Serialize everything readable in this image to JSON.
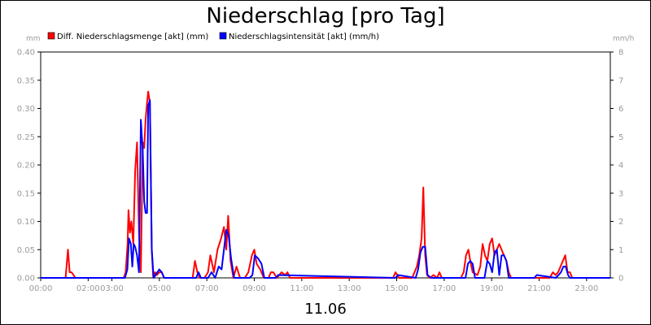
{
  "chart_data": {
    "type": "line",
    "title": "Niederschlag [pro Tag]",
    "xlabel": "11.06",
    "y_left_unit": "mm",
    "y_right_unit": "mm/h",
    "y_left_range": [
      0,
      0.4
    ],
    "y_right_range": [
      0,
      8
    ],
    "y_left_ticks": [
      "0.00",
      "0.05",
      "0.10",
      "0.15",
      "0.20",
      "0.25",
      "0.30",
      "0.35",
      "0.40"
    ],
    "y_right_ticks": [
      "0",
      "1",
      "2",
      "3",
      "4",
      "5",
      "6",
      "7",
      "8"
    ],
    "x_range_hours": [
      0,
      24
    ],
    "x_tick_hours": [
      0,
      2,
      3,
      5,
      7,
      9,
      11,
      13,
      15,
      17,
      19,
      21,
      23
    ],
    "x_tick_labels": [
      "00:00",
      "02:00",
      "03:00",
      "05:00",
      "07:00",
      "09:00",
      "11:00",
      "13:00",
      "15:00",
      "17:00",
      "19:00",
      "21:00",
      "23:00"
    ],
    "grid": false,
    "legend_placement": "top-left",
    "series": [
      {
        "name": "Diff. Niederschlagsmenge [akt] (mm)",
        "color": "#ff0000",
        "axis": "left",
        "x": [
          0,
          1.05,
          1.15,
          1.22,
          1.3,
          1.38,
          1.46,
          1.55,
          3.5,
          3.58,
          3.66,
          3.7,
          3.76,
          3.82,
          3.9,
          3.98,
          4.06,
          4.14,
          4.22,
          4.3,
          4.36,
          4.42,
          4.48,
          4.53,
          4.6,
          4.68,
          4.74,
          4.82,
          4.9,
          5.0,
          5.1,
          5.2,
          6.4,
          6.5,
          6.6,
          6.7,
          6.9,
          7.05,
          7.15,
          7.3,
          7.45,
          7.6,
          7.72,
          7.82,
          7.9,
          8.0,
          8.12,
          8.25,
          8.4,
          8.6,
          8.75,
          8.9,
          9.0,
          9.1,
          9.25,
          9.4,
          9.6,
          9.7,
          9.8,
          9.95,
          10.15,
          10.3,
          10.4,
          10.5,
          14.85,
          14.95,
          15.1,
          15.65,
          15.85,
          15.95,
          16.05,
          16.12,
          16.2,
          16.28,
          16.4,
          16.55,
          16.7,
          16.8,
          16.9,
          17.7,
          17.82,
          17.92,
          18.02,
          18.1,
          18.2,
          18.4,
          18.52,
          18.62,
          18.72,
          18.82,
          18.92,
          19.02,
          19.12,
          19.22,
          19.32,
          19.42,
          19.52,
          19.62,
          19.72,
          19.82,
          20.9,
          21.45,
          21.58,
          21.7,
          21.8,
          21.9,
          22.0,
          22.1,
          22.2,
          22.3,
          22.4,
          24.0
        ],
        "values": [
          0,
          0,
          0.05,
          0.01,
          0.01,
          0.005,
          0,
          0,
          0,
          0.01,
          0.06,
          0.12,
          0.08,
          0.1,
          0.06,
          0.19,
          0.24,
          0.08,
          0.01,
          0.24,
          0.23,
          0.28,
          0.31,
          0.33,
          0.31,
          0.05,
          0,
          0.01,
          0.005,
          0.01,
          0.01,
          0,
          0,
          0.03,
          0.01,
          0,
          0,
          0.01,
          0.04,
          0.01,
          0.05,
          0.07,
          0.09,
          0.05,
          0.11,
          0.03,
          0,
          0.02,
          0,
          0,
          0.01,
          0.04,
          0.05,
          0.025,
          0.015,
          0,
          0,
          0.01,
          0.01,
          0,
          0.01,
          0.005,
          0.01,
          0,
          0,
          0.01,
          0,
          0,
          0.02,
          0.04,
          0.07,
          0.16,
          0.04,
          0.005,
          0,
          0.005,
          0,
          0.01,
          0,
          0,
          0.01,
          0.04,
          0.05,
          0.03,
          0.01,
          0.005,
          0.02,
          0.06,
          0.04,
          0.03,
          0.06,
          0.07,
          0.04,
          0.05,
          0.06,
          0.05,
          0.04,
          0.03,
          0.01,
          0,
          0,
          0,
          0.01,
          0.005,
          0.01,
          0.02,
          0.03,
          0.04,
          0.01,
          0.01,
          0,
          0
        ]
      },
      {
        "name": "Niederschlagsintensität [akt] (mm/h)",
        "color": "#0000ff",
        "axis": "right",
        "x": [
          0,
          3.55,
          3.65,
          3.72,
          3.8,
          3.86,
          3.92,
          3.98,
          4.06,
          4.14,
          4.22,
          4.3,
          4.36,
          4.42,
          4.48,
          4.53,
          4.6,
          4.68,
          4.76,
          4.84,
          5.0,
          5.1,
          5.2,
          6.55,
          6.65,
          6.75,
          7.05,
          7.2,
          7.35,
          7.5,
          7.62,
          7.72,
          7.82,
          7.92,
          8.02,
          8.15,
          8.8,
          8.92,
          9.02,
          9.15,
          9.3,
          9.42,
          9.55,
          9.9,
          10.0,
          14.95,
          15.05,
          15.8,
          15.9,
          16.0,
          16.1,
          16.2,
          16.3,
          16.45,
          17.9,
          18.0,
          18.1,
          18.2,
          18.3,
          18.7,
          18.82,
          18.92,
          19.02,
          19.12,
          19.22,
          19.32,
          19.42,
          19.52,
          19.62,
          19.72,
          20.8,
          20.9,
          21.7,
          21.82,
          21.92,
          22.02,
          22.12,
          22.22,
          22.3,
          24.0
        ],
        "values": [
          0,
          0,
          0.3,
          1.4,
          1.2,
          0.4,
          1.2,
          1.1,
          0.8,
          0.2,
          5.6,
          4.5,
          2.7,
          2.3,
          2.3,
          6.1,
          6.3,
          1.0,
          0,
          0.1,
          0.3,
          0.2,
          0,
          0,
          0.2,
          0,
          0,
          0.2,
          0,
          0.4,
          0.3,
          1.0,
          1.7,
          1.5,
          0.7,
          0,
          0,
          0.1,
          0.8,
          0.7,
          0.5,
          0,
          0,
          0,
          0.1,
          0,
          0.1,
          0,
          0.3,
          0.9,
          1.1,
          1.1,
          0.1,
          0,
          0,
          0.5,
          0.6,
          0.5,
          0,
          0,
          0.6,
          0.5,
          0.2,
          0.9,
          1.0,
          0.1,
          0.8,
          0.8,
          0.6,
          0,
          0,
          0.1,
          0,
          0.1,
          0.2,
          0.4,
          0.4,
          0.1,
          0,
          0
        ]
      }
    ]
  }
}
